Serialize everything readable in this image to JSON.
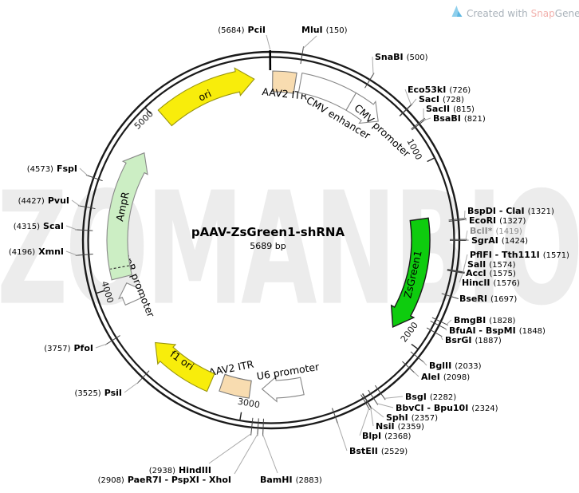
{
  "watermark": "ZOMANBIO",
  "credit": {
    "prefix": "Created with ",
    "brand_a": "Snap",
    "brand_b": "Gene",
    "registered": "®"
  },
  "plasmid": {
    "name": "pAAV-ZsGreen1-shRNA",
    "size_label": "5689 bp",
    "length_bp": 5689
  },
  "scale_ticks": [
    {
      "label": "1000",
      "bp": 1000
    },
    {
      "label": "2000",
      "bp": 2000
    },
    {
      "label": "3000",
      "bp": 3000
    },
    {
      "label": "4000",
      "bp": 4000
    },
    {
      "label": "5000",
      "bp": 5000
    }
  ],
  "features": [
    {
      "label": "ori",
      "color": "#F8ED0B"
    },
    {
      "label": "AAV2 ITR",
      "color": "#F8DCB0"
    },
    {
      "label": "CMV enhancer",
      "color": "#FFFFFF"
    },
    {
      "label": "CMV promoter",
      "color": "#FFFFFF"
    },
    {
      "label": "ZsGreen1",
      "color": "#0ECC0E"
    },
    {
      "label": "U6 promoter",
      "color": "#FFFFFF"
    },
    {
      "label": "AAV2 ITR",
      "color": "#F8DCB0"
    },
    {
      "label": "f1 ori",
      "color": "#F8ED0B"
    },
    {
      "label": "AmpR promoter",
      "color": "#FFFFFF"
    },
    {
      "label": "AmpR",
      "color": "#CCEEC4"
    }
  ],
  "sites": [
    {
      "name": "PciI",
      "bp": 5684,
      "style": "left"
    },
    {
      "name": "MluI",
      "bp": 150,
      "style": "right"
    },
    {
      "name": "SnaBI",
      "bp": 500,
      "style": "right"
    },
    {
      "name": "Eco53kI",
      "bp": 726,
      "style": "right"
    },
    {
      "name": "SacI",
      "bp": 728,
      "style": "right"
    },
    {
      "name": "SacII",
      "bp": 815,
      "style": "right"
    },
    {
      "name": "BsaBI",
      "bp": 821,
      "style": "right"
    },
    {
      "name": "BspDI - ClaI",
      "bp": 1321,
      "style": "right"
    },
    {
      "name": "EcoRI",
      "bp": 1327,
      "style": "right"
    },
    {
      "name": "BclI*",
      "bp": 1419,
      "style": "right",
      "gray": true
    },
    {
      "name": "SgrAI",
      "bp": 1424,
      "style": "right"
    },
    {
      "name": "PflFI - Tth111I",
      "bp": 1571,
      "style": "right"
    },
    {
      "name": "SalI",
      "bp": 1574,
      "style": "right"
    },
    {
      "name": "AccI",
      "bp": 1575,
      "style": "right"
    },
    {
      "name": "HincII",
      "bp": 1576,
      "style": "right"
    },
    {
      "name": "BseRI",
      "bp": 1697,
      "style": "right"
    },
    {
      "name": "BmgBI",
      "bp": 1828,
      "style": "right"
    },
    {
      "name": "BfuAI - BspMI",
      "bp": 1848,
      "style": "right"
    },
    {
      "name": "BsrGI",
      "bp": 1887,
      "style": "right"
    },
    {
      "name": "BglII",
      "bp": 2033,
      "style": "right"
    },
    {
      "name": "AleI",
      "bp": 2098,
      "style": "right"
    },
    {
      "name": "BsgI",
      "bp": 2282,
      "style": "right"
    },
    {
      "name": "BbvCI - Bpu10I",
      "bp": 2324,
      "style": "right"
    },
    {
      "name": "SphI",
      "bp": 2357,
      "style": "right"
    },
    {
      "name": "NsiI",
      "bp": 2359,
      "style": "right"
    },
    {
      "name": "BlpI",
      "bp": 2368,
      "style": "right"
    },
    {
      "name": "BstEII",
      "bp": 2529,
      "style": "right"
    },
    {
      "name": "BamHI",
      "bp": 2883,
      "style": "right"
    },
    {
      "name": "PaeR7I - PspXI - XhoI",
      "bp": 2908,
      "style": "left"
    },
    {
      "name": "HindIII",
      "bp": 2938,
      "style": "left"
    },
    {
      "name": "PsiI",
      "bp": 3525,
      "style": "left"
    },
    {
      "name": "PfoI",
      "bp": 3757,
      "style": "left"
    },
    {
      "name": "XmnI",
      "bp": 4196,
      "style": "left"
    },
    {
      "name": "ScaI",
      "bp": 4315,
      "style": "left"
    },
    {
      "name": "PvuI",
      "bp": 4427,
      "style": "left"
    },
    {
      "name": "FspI",
      "bp": 4573,
      "style": "left"
    }
  ]
}
